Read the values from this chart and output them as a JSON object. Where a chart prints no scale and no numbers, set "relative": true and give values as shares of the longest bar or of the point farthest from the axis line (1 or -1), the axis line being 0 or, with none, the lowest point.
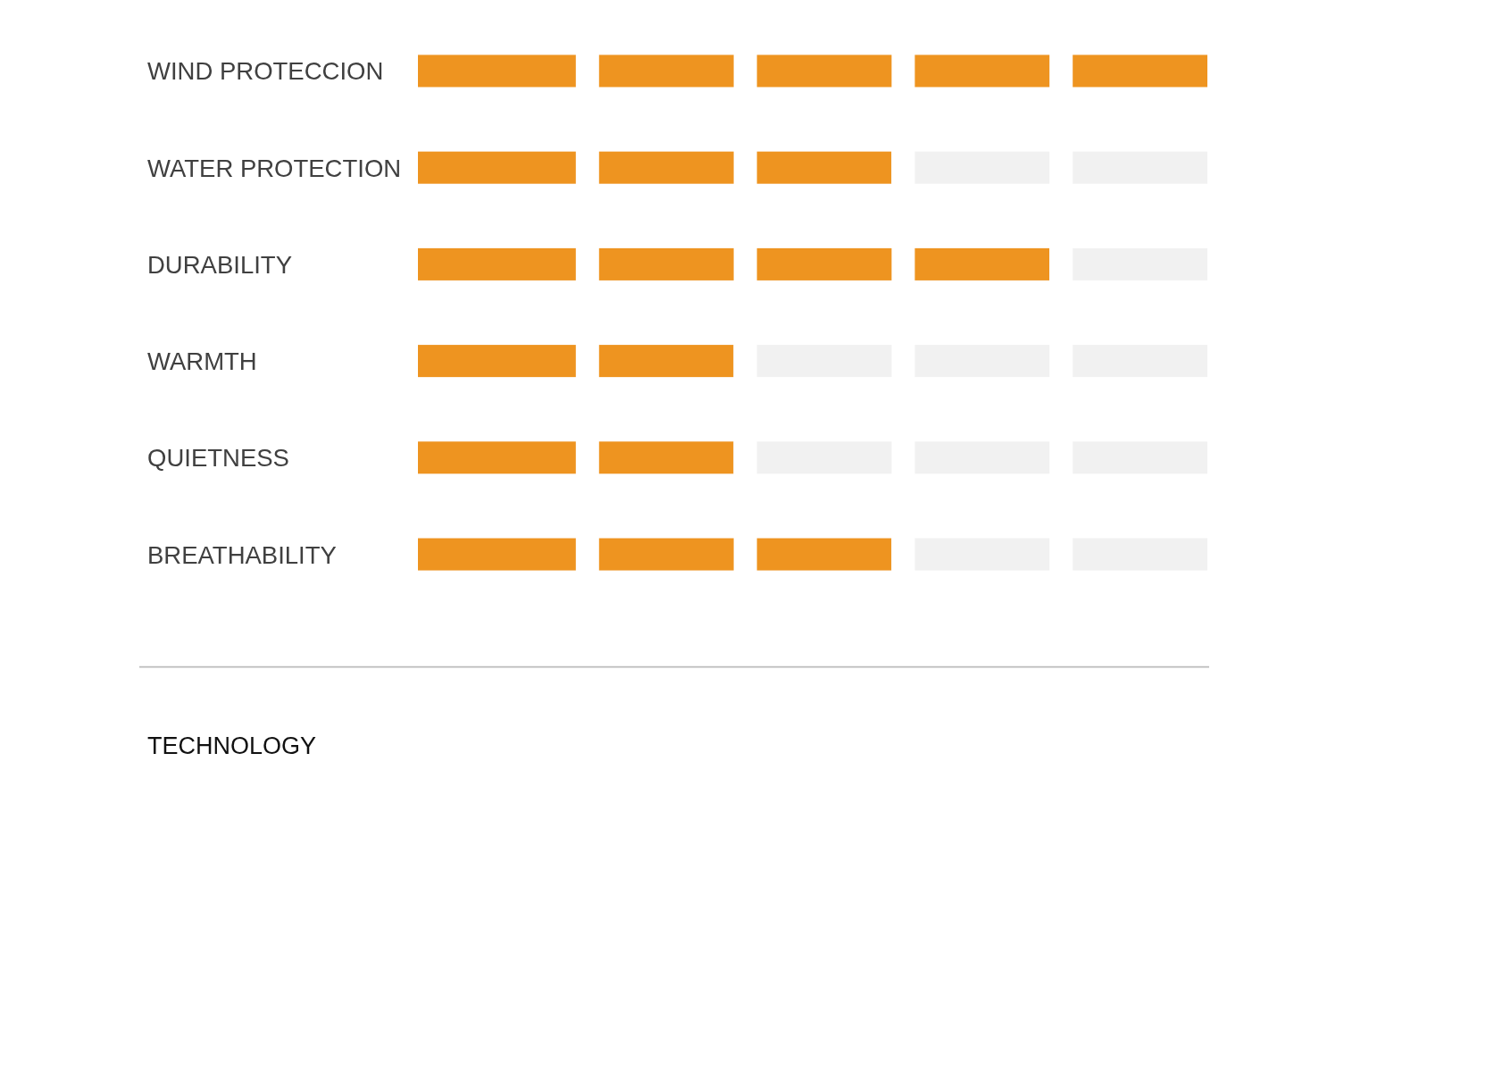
{
  "chart_data": {
    "type": "bar",
    "orientation": "horizontal",
    "stacked": true,
    "relative": true,
    "categories": [
      "WIND PROTECCION",
      "WATER PROTECTION",
      "DURABILITY",
      "WARMTH",
      "QUIETNESS",
      "BREATHABILITY"
    ],
    "series": [
      {
        "color": "#ee9420",
        "values": [
          1,
          0.6,
          0.8,
          0.4,
          0.4,
          0.6
        ]
      },
      {
        "color": "#f1f1f1",
        "values": [
          0,
          0.4,
          0.2,
          0.6,
          0.6,
          0.4
        ]
      }
    ],
    "annotations": [
      "TECHNOLOGY"
    ]
  }
}
